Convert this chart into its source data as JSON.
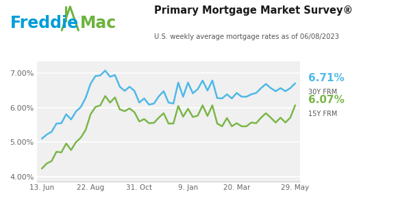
{
  "title": "Primary Mortgage Market Survey®",
  "subtitle": "U.S. weekly average mortgage rates as of 06/08/2023",
  "rate_30y_label": "6.71%",
  "rate_30y_sub": "30Y FRM",
  "rate_15y_label": "6.07%",
  "rate_15y_sub": "15Y FRM",
  "color_30y": "#4db8e8",
  "color_15y": "#7ab648",
  "color_freddie_blue": "#009DD9",
  "color_freddie_green": "#6DB33F",
  "ylim": [
    3.85,
    7.35
  ],
  "yticks": [
    4.0,
    5.0,
    6.0,
    7.0
  ],
  "xtick_labels": [
    "13. Jun",
    "22. Aug",
    "31. Oct",
    "9. Jan",
    "20. Mar",
    "29. May"
  ],
  "xtick_positions": [
    0,
    10,
    20,
    30,
    40,
    52
  ],
  "background_color": "#ffffff",
  "plot_bg_color": "#f0f0f0",
  "grid_color": "#ffffff",
  "x_data": [
    0,
    1,
    2,
    3,
    4,
    5,
    6,
    7,
    8,
    9,
    10,
    11,
    12,
    13,
    14,
    15,
    16,
    17,
    18,
    19,
    20,
    21,
    22,
    23,
    24,
    25,
    26,
    27,
    28,
    29,
    30,
    31,
    32,
    33,
    34,
    35,
    36,
    37,
    38,
    39,
    40,
    41,
    42,
    43,
    44,
    45,
    46,
    47,
    48,
    49,
    50,
    51,
    52
  ],
  "y_30y": [
    5.1,
    5.22,
    5.3,
    5.54,
    5.55,
    5.81,
    5.66,
    5.89,
    6.02,
    6.29,
    6.7,
    6.92,
    6.94,
    7.08,
    6.9,
    6.95,
    6.61,
    6.49,
    6.61,
    6.49,
    6.15,
    6.27,
    6.09,
    6.12,
    6.33,
    6.48,
    6.15,
    6.12,
    6.73,
    6.32,
    6.73,
    6.42,
    6.54,
    6.79,
    6.5,
    6.79,
    6.28,
    6.27,
    6.39,
    6.27,
    6.43,
    6.32,
    6.32,
    6.39,
    6.43,
    6.57,
    6.69,
    6.57,
    6.48,
    6.57,
    6.48,
    6.57,
    6.71
  ],
  "y_15y": [
    4.23,
    4.38,
    4.45,
    4.72,
    4.7,
    4.96,
    4.77,
    5.0,
    5.13,
    5.36,
    5.81,
    6.02,
    6.07,
    6.34,
    6.15,
    6.3,
    5.95,
    5.9,
    5.98,
    5.87,
    5.6,
    5.67,
    5.55,
    5.56,
    5.71,
    5.84,
    5.54,
    5.54,
    6.05,
    5.74,
    5.97,
    5.73,
    5.77,
    6.07,
    5.76,
    6.07,
    5.54,
    5.46,
    5.7,
    5.46,
    5.55,
    5.46,
    5.46,
    5.57,
    5.55,
    5.71,
    5.84,
    5.71,
    5.57,
    5.71,
    5.57,
    5.71,
    6.07
  ]
}
